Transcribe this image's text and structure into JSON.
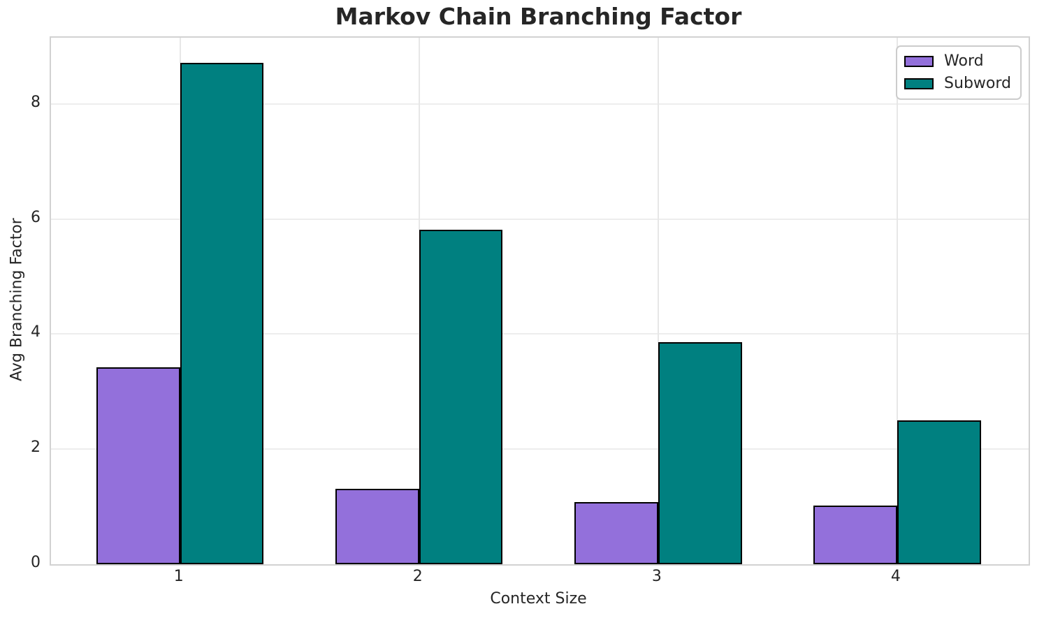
{
  "chart_data": {
    "type": "bar",
    "title": "Markov Chain Branching Factor",
    "xlabel": "Context Size",
    "ylabel": "Avg Branching Factor",
    "categories": [
      "1",
      "2",
      "3",
      "4"
    ],
    "series": [
      {
        "name": "Word",
        "color": "#9370DB",
        "values": [
          3.42,
          1.31,
          1.08,
          1.02
        ]
      },
      {
        "name": "Subword",
        "color": "#008080",
        "values": [
          8.71,
          5.81,
          3.86,
          2.5
        ]
      }
    ],
    "bar_edge_color": "#000000",
    "bar_width_data_units": 0.35,
    "xlim": [
      0.46,
      4.55
    ],
    "ylim": [
      0,
      9.15
    ],
    "yticks": [
      0,
      2,
      4,
      6,
      8
    ],
    "grid": "on",
    "grid_color": "#ededed",
    "legend_position": "upper right",
    "background_color": "#ffffff",
    "text_color": "#262626"
  }
}
